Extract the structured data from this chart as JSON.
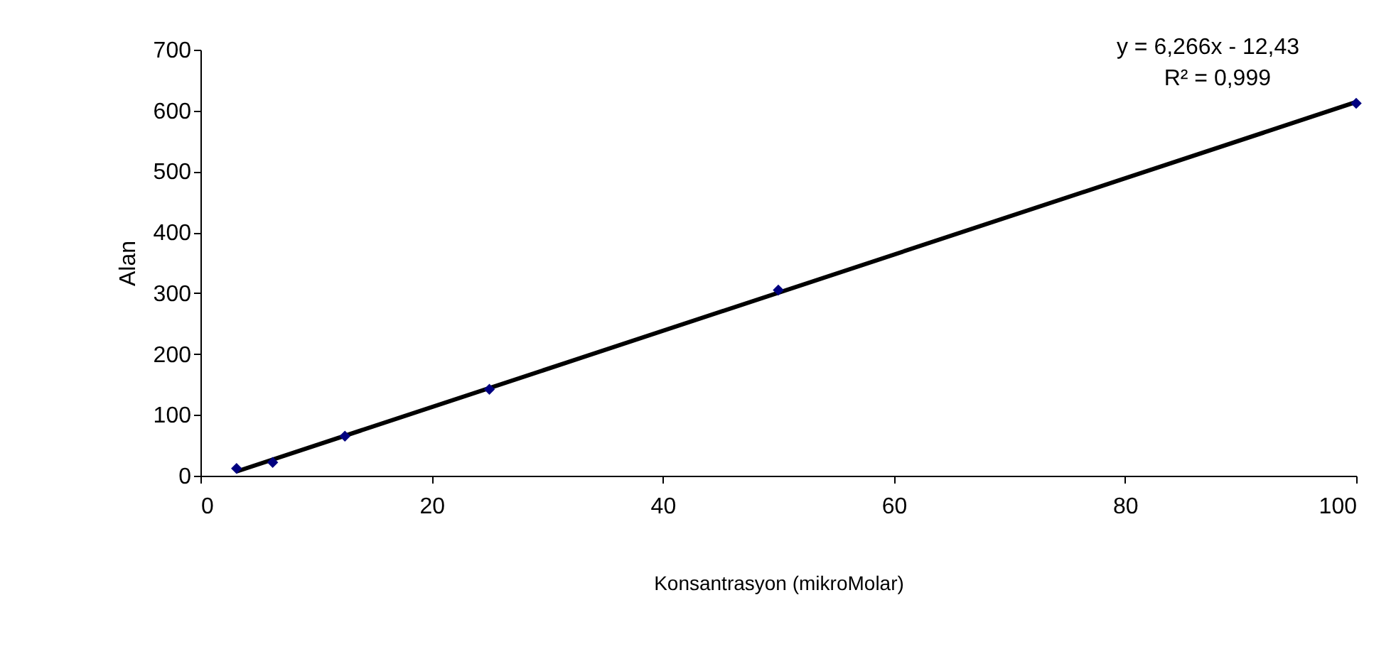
{
  "chart_data": {
    "type": "scatter",
    "xlabel": "Konsantrasyon (mikroMolar)",
    "ylabel": "Alan",
    "xlim": [
      0,
      100
    ],
    "xticks": [
      0,
      20,
      40,
      60,
      80,
      100
    ],
    "ylim": [
      0,
      700
    ],
    "yticks": [
      0,
      100,
      200,
      300,
      400,
      500,
      600,
      700
    ],
    "grid": false,
    "legend": false,
    "series": [
      {
        "type": "line",
        "color": "#000000",
        "line_style": "solid",
        "marker": "none",
        "x": [
          3.125,
          100
        ],
        "values": [
          7,
          614
        ]
      },
      {
        "color": "#000080",
        "marker": "diamond",
        "x": [
          3.125,
          6.25,
          12.5,
          25,
          50,
          100
        ],
        "values": [
          12,
          22,
          65,
          142,
          305,
          612
        ]
      }
    ],
    "annotations": [
      "y = 6,266x - 12,43",
      "R² = 0,999"
    ]
  }
}
